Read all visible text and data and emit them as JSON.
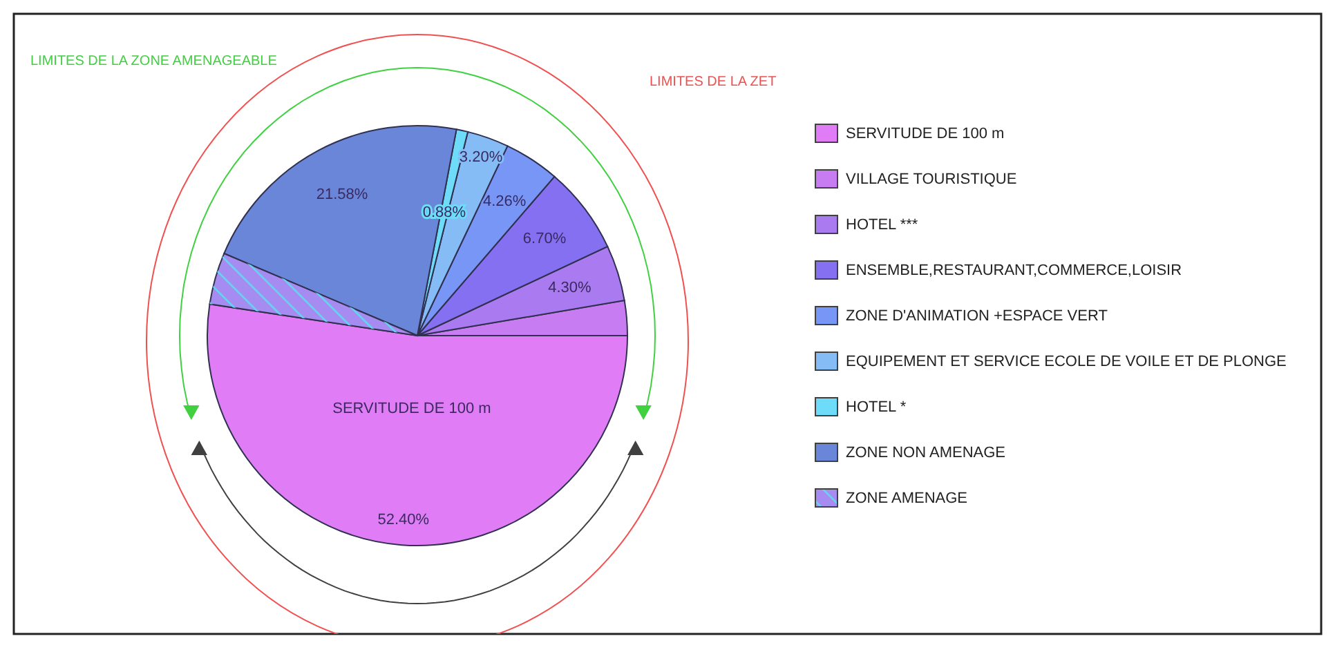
{
  "chart_data": {
    "type": "pie",
    "categories": [
      "SERVITUDE DE 100 m",
      "VILLAGE TOURISTIQUE",
      "HOTEL ***",
      "ENSEMBLE,RESTAURANT,COMMERCE,LOISIR",
      "ZONE D'ANIMATION +ESPACE VERT",
      "EQUIPEMENT ET SERVICE ECOLE DE VOILE ET DE PLONGE",
      "HOTEL *",
      "ZONE NON AMENAGE",
      "ZONE AMENAGE"
    ],
    "values": [
      52.4,
      2.68,
      4.3,
      6.7,
      4.26,
      3.2,
      0.88,
      21.58,
      4.0
    ],
    "colors": [
      "#e07cf6",
      "#c87cf2",
      "#a97af0",
      "#8470f0",
      "#7896f6",
      "#86bcf6",
      "#6edcf8",
      "#6a86d8",
      "#a68cf0"
    ],
    "value_labels": [
      "52.40%",
      null,
      "4.30%",
      "6.70%",
      "4.26%",
      "3.20%",
      "0.88%",
      "21.58%",
      null
    ],
    "annotations": [
      {
        "text": "SERVITUDE DE 100 m",
        "x": "SERVITUDE DE 100 m"
      },
      "LIMITES DE LA ZONE AMENAGEABLE",
      "LIMITES DE LA ZET"
    ],
    "legend": "right"
  }
}
